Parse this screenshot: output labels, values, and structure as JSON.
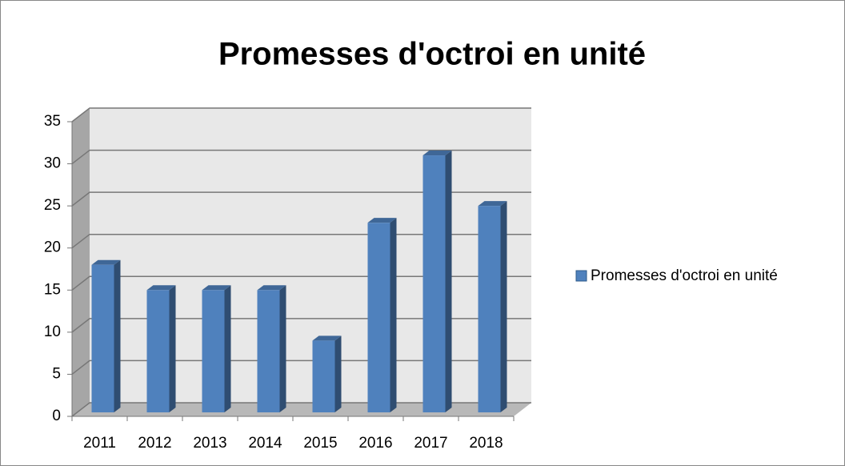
{
  "chart_data": {
    "type": "bar3d",
    "title": "Promesses d'octroi en unité",
    "categories": [
      "2011",
      "2012",
      "2013",
      "2014",
      "2015",
      "2016",
      "2017",
      "2018"
    ],
    "series": [
      {
        "name": "Promesses d'octroi en unité",
        "color": "#4f81bd",
        "values": [
          18,
          15,
          15,
          15,
          9,
          23,
          31,
          25
        ]
      }
    ],
    "ylim": [
      0,
      35
    ],
    "yticks": [
      0,
      5,
      10,
      15,
      20,
      25,
      30,
      35
    ],
    "grid": true,
    "legend": "right"
  }
}
